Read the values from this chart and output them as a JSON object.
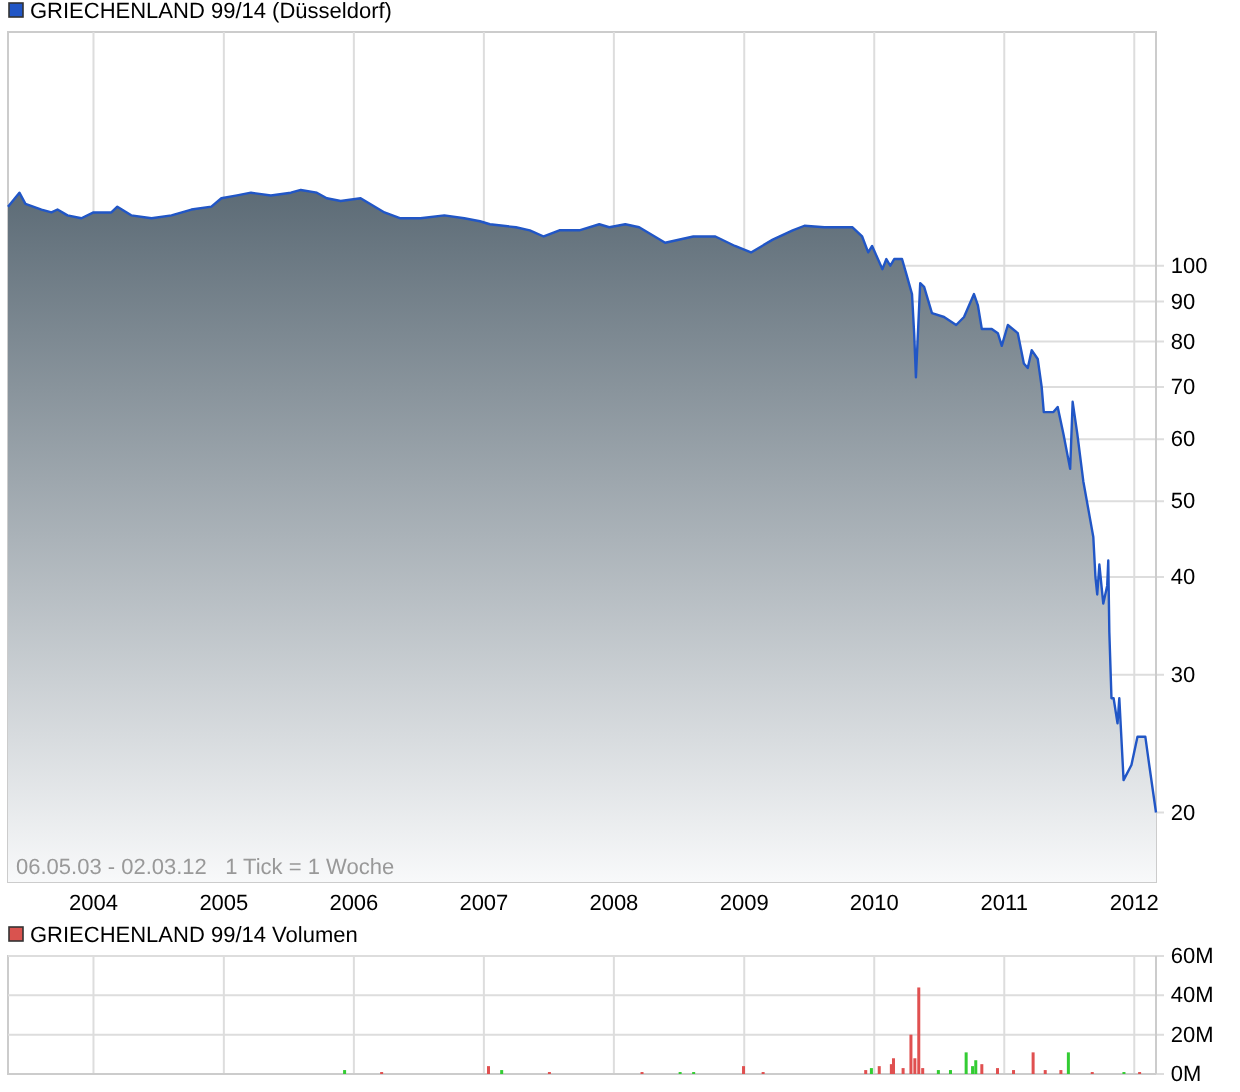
{
  "chart_data": [
    {
      "type": "area",
      "log": true,
      "grid": true,
      "legend": "top left",
      "annotations": [
        "06.05.03 - 02.03.12   1 Tick = 1 Woche"
      ],
      "xlim": [
        "2003-05-06",
        "2012-03-02"
      ],
      "xticks": [
        "2004",
        "2005",
        "2006",
        "2007",
        "2008",
        "2009",
        "2010",
        "2011",
        "2012"
      ],
      "ylim": [
        16.3,
        199
      ],
      "yticks": [
        20,
        30,
        40,
        50,
        60,
        70,
        80,
        90,
        100
      ],
      "series": [
        {
          "name": "GRIECHENLAND 99/14 (Düsseldorf)",
          "color": "#2156c6",
          "x": [
            "2003-05-06",
            "2003-06-07",
            "2003-06-24",
            "2003-08-08",
            "2003-09-05",
            "2003-09-22",
            "2003-10-20",
            "2003-11-28",
            "2004-01-01",
            "2004-02-20",
            "2004-03-08",
            "2004-04-16",
            "2004-06-12",
            "2004-08-07",
            "2004-10-02",
            "2004-11-27",
            "2004-12-25",
            "2005-02-07",
            "2005-03-18",
            "2005-05-13",
            "2005-07-08",
            "2005-08-05",
            "2005-09-19",
            "2005-10-17",
            "2005-11-25",
            "2006-01-20",
            "2006-03-28",
            "2006-05-12",
            "2006-07-07",
            "2006-09-12",
            "2006-11-07",
            "2006-12-21",
            "2007-01-18",
            "2007-04-01",
            "2007-05-10",
            "2007-06-18",
            "2007-08-01",
            "2007-09-26",
            "2007-11-21",
            "2007-12-19",
            "2008-02-02",
            "2008-03-12",
            "2008-05-24",
            "2008-08-11",
            "2008-10-12",
            "2008-12-06",
            "2009-01-20",
            "2009-03-22",
            "2009-05-17",
            "2009-06-19",
            "2009-08-14",
            "2009-11-01",
            "2009-11-28",
            "2009-12-15",
            "2009-12-26",
            "2010-01-24",
            "2010-02-04",
            "2010-02-15",
            "2010-02-26",
            "2010-03-20",
            "2010-03-31",
            "2010-04-17",
            "2010-04-23",
            "2010-04-28",
            "2010-05-10",
            "2010-05-21",
            "2010-06-12",
            "2010-07-16",
            "2010-08-19",
            "2010-09-10",
            "2010-10-08",
            "2010-10-19",
            "2010-10-30",
            "2010-11-27",
            "2010-12-14",
            "2010-12-25",
            "2011-01-11",
            "2011-02-08",
            "2011-02-25",
            "2011-03-08",
            "2011-03-19",
            "2011-04-05",
            "2011-04-16",
            "2011-04-22",
            "2011-05-19",
            "2011-05-31",
            "2011-06-16",
            "2011-07-05",
            "2011-07-12",
            "2011-07-25",
            "2011-08-11",
            "2011-08-28",
            "2011-09-08",
            "2011-09-14",
            "2011-09-19",
            "2011-09-25",
            "2011-10-06",
            "2011-10-17",
            "2011-10-20",
            "2011-10-23",
            "2011-10-29",
            "2011-11-04",
            "2011-11-15",
            "2011-11-20",
            "2011-12-02",
            "2011-12-24",
            "2012-01-10",
            "2012-02-01",
            "2012-02-12",
            "2012-03-02"
          ],
          "values": [
            119,
            124,
            120,
            118,
            117,
            118,
            116,
            115,
            117,
            117,
            119,
            116,
            115,
            116,
            118,
            119,
            122,
            123,
            124,
            123,
            124,
            125,
            124,
            122,
            121,
            122,
            117,
            115,
            115,
            116,
            115,
            114,
            113,
            112,
            111,
            109,
            111,
            111,
            113,
            112,
            113,
            112,
            107,
            109,
            109,
            106,
            104,
            108,
            111,
            112.5,
            112,
            112,
            109,
            104,
            106,
            99,
            102,
            100,
            102,
            102,
            98,
            92,
            82,
            72,
            95,
            94,
            87,
            86,
            84,
            86,
            92,
            89,
            83,
            83,
            82,
            79,
            84,
            82,
            75,
            74,
            78,
            76,
            70,
            65,
            65,
            66,
            61,
            55,
            67,
            61,
            53,
            48,
            45,
            40,
            38,
            41.5,
            37,
            39,
            42,
            34,
            28,
            28,
            26,
            28,
            22,
            23,
            25,
            25,
            23,
            20
          ]
        }
      ]
    },
    {
      "type": "bar",
      "grid": true,
      "legend": "top left",
      "tick_labels": "y",
      "xlim": [
        "2003-05-06",
        "2012-03-02"
      ],
      "xticks": [
        "2004",
        "2005",
        "2006",
        "2007",
        "2008",
        "2009",
        "2010",
        "2011",
        "2012"
      ],
      "ylim": [
        0,
        60
      ],
      "yticks": [
        {
          "value": 0,
          "label": "0M"
        },
        {
          "value": 20,
          "label": "20M"
        },
        {
          "value": 40,
          "label": "40M"
        },
        {
          "value": 60,
          "label": "60M"
        }
      ],
      "series": [
        {
          "name": "GRIECHENLAND 99/14 Volumen",
          "color": "#d9534f",
          "x": [
            "2005-12-06",
            "2006-03-20",
            "2007-01-14",
            "2007-02-20",
            "2007-07-04",
            "2008-03-20",
            "2008-07-05",
            "2008-08-12",
            "2008-12-30",
            "2009-02-23",
            "2009-12-08",
            "2009-12-24",
            "2010-01-15",
            "2010-02-18",
            "2010-02-24",
            "2010-03-23",
            "2010-04-14",
            "2010-04-25",
            "2010-05-06",
            "2010-05-17",
            "2010-06-30",
            "2010-08-03",
            "2010-09-16",
            "2010-10-04",
            "2010-10-13",
            "2010-10-30",
            "2010-12-13",
            "2011-01-27",
            "2011-03-23",
            "2011-04-26",
            "2011-06-09",
            "2011-06-30",
            "2011-09-05",
            "2011-12-03",
            "2012-01-16"
          ],
          "values": [
            2,
            1,
            4,
            2,
            1,
            1,
            1,
            1,
            4,
            1,
            2,
            3,
            4,
            5,
            8,
            3,
            20,
            8,
            44,
            3,
            2,
            2,
            11,
            4,
            7,
            5,
            3,
            2,
            11,
            2,
            2,
            11,
            1,
            1,
            1
          ],
          "colors": [
            "#33cc33",
            "#e05050",
            "#e05050",
            "#33cc33",
            "#e05050",
            "#e05050",
            "#33cc33",
            "#33cc33",
            "#e05050",
            "#e05050",
            "#e05050",
            "#33cc33",
            "#e05050",
            "#e05050",
            "#e05050",
            "#e05050",
            "#e05050",
            "#e05050",
            "#e05050",
            "#e05050",
            "#33cc33",
            "#33cc33",
            "#33cc33",
            "#33cc33",
            "#33cc33",
            "#e05050",
            "#e05050",
            "#e05050",
            "#e05050",
            "#e05050",
            "#e05050",
            "#33cc33",
            "#e05050",
            "#33cc33",
            "#e05050"
          ]
        }
      ]
    }
  ]
}
